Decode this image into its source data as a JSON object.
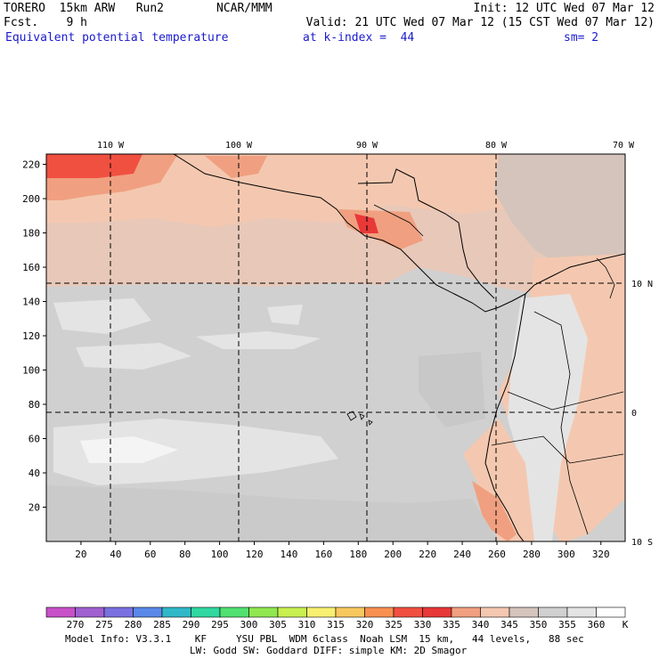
{
  "header": {
    "model": "TORERO  15km ARW   Run2",
    "center": "NCAR/MMM",
    "init": "Init: 12 UTC Wed 07 Mar 12",
    "fcst": "Fcst.    9 h",
    "valid": "Valid: 21 UTC Wed 07 Mar 12 (15 CST Wed 07 Mar 12)",
    "field": "Equivalent potential temperature",
    "level": "at k-index =  44",
    "smooth": "sm= 2"
  },
  "map": {
    "top_lon_labels": [
      "110 W",
      "100 W",
      "90 W",
      "80 W",
      "70 W"
    ],
    "right_lat_labels": [
      "10 N",
      "0",
      "10 S"
    ],
    "y_ticks": [
      "220",
      "200",
      "180",
      "160",
      "140",
      "120",
      "100",
      "80",
      "60",
      "40",
      "20"
    ],
    "x_ticks": [
      "20",
      "40",
      "60",
      "80",
      "100",
      "120",
      "140",
      "160",
      "180",
      "200",
      "220",
      "240",
      "260",
      "280",
      "300",
      "320"
    ],
    "xlim": [
      0,
      334
    ],
    "ylim": [
      0,
      226
    ]
  },
  "colorbar": {
    "values": [
      "270",
      "275",
      "280",
      "285",
      "290",
      "295",
      "300",
      "305",
      "310",
      "315",
      "320",
      "325",
      "330",
      "335",
      "340",
      "345",
      "350",
      "355",
      "360"
    ],
    "unit": "K",
    "colors": [
      "#c850c8",
      "#a060d0",
      "#7a70e0",
      "#5a88e8",
      "#30b8c8",
      "#30d8a0",
      "#50e070",
      "#90e850",
      "#c8f050",
      "#f8f070",
      "#f8c860",
      "#f89050",
      "#f05040",
      "#e83838",
      "#f0a080",
      "#f4c8b0",
      "#d4c4bc",
      "#d0d0d0",
      "#e4e4e4",
      "#ffffff"
    ]
  },
  "footer": {
    "line1": "Model Info: V3.3.1    KF     YSU PBL  WDM 6class  Noah LSM  15 km,   44 levels,   88 sec",
    "line2": "LW: Godd SW: Goddard DIFF: simple KM: 2D Smagor"
  }
}
